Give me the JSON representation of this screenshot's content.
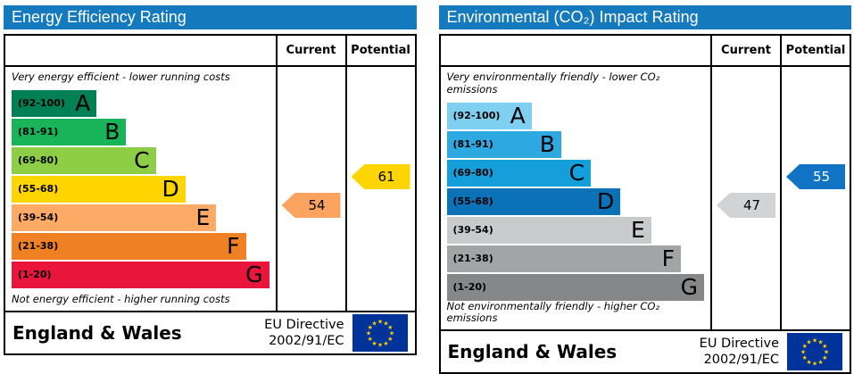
{
  "chart_data": [
    {
      "type": "bar",
      "title": "Energy Efficiency Rating",
      "header_color": "#1479bd",
      "column_headers": {
        "current": "Current",
        "potential": "Potential"
      },
      "top_caption": "Very energy efficient - lower running costs",
      "bottom_caption": "Not energy efficient - higher running costs",
      "bands": [
        {
          "letter": "A",
          "range": "(92-100)",
          "min": 92,
          "max": 100,
          "color": "#008054",
          "width": "33%"
        },
        {
          "letter": "B",
          "range": "(81-91)",
          "min": 81,
          "max": 91,
          "color": "#19b459",
          "width": "44.5%"
        },
        {
          "letter": "C",
          "range": "(69-80)",
          "min": 69,
          "max": 80,
          "color": "#8dce46",
          "width": "56%"
        },
        {
          "letter": "D",
          "range": "(55-68)",
          "min": 55,
          "max": 68,
          "color": "#ffd500",
          "width": "67.5%"
        },
        {
          "letter": "E",
          "range": "(39-54)",
          "min": 39,
          "max": 54,
          "color": "#fcaa65",
          "width": "79.5%"
        },
        {
          "letter": "F",
          "range": "(21-38)",
          "min": 21,
          "max": 38,
          "color": "#ef8023",
          "width": "91%"
        },
        {
          "letter": "G",
          "range": "(1-20)",
          "min": 1,
          "max": 20,
          "color": "#e9153b",
          "width": "100%"
        }
      ],
      "current": {
        "value": 54,
        "band": "E",
        "row": 4,
        "color": "#fba35f",
        "text_color": "#000000"
      },
      "potential": {
        "value": 61,
        "band": "D",
        "row": 3,
        "color": "#ffd500",
        "text_color": "#000000"
      },
      "footer": {
        "region": "England & Wales",
        "directive_line1": "EU Directive",
        "directive_line2": "2002/91/EC",
        "flag_bg": "#003399",
        "star_color": "#ffcc00"
      }
    },
    {
      "type": "bar",
      "title": "Environmental (CO₂) Impact Rating",
      "header_color": "#1479bd",
      "column_headers": {
        "current": "Current",
        "potential": "Potential"
      },
      "top_caption": "Very environmentally friendly - lower CO₂ emissions",
      "bottom_caption": "Not environmentally friendly - higher CO₂ emissions",
      "bands": [
        {
          "letter": "A",
          "range": "(92-100)",
          "min": 92,
          "max": 100,
          "color": "#7ecff0",
          "width": "33%"
        },
        {
          "letter": "B",
          "range": "(81-91)",
          "min": 81,
          "max": 91,
          "color": "#2ea8e0",
          "width": "44.5%"
        },
        {
          "letter": "C",
          "range": "(69-80)",
          "min": 69,
          "max": 80,
          "color": "#149fda",
          "width": "56%"
        },
        {
          "letter": "D",
          "range": "(55-68)",
          "min": 55,
          "max": 68,
          "color": "#0b72b8",
          "width": "67.5%"
        },
        {
          "letter": "E",
          "range": "(39-54)",
          "min": 39,
          "max": 54,
          "color": "#c9cacb",
          "width": "79.5%"
        },
        {
          "letter": "F",
          "range": "(21-38)",
          "min": 21,
          "max": 38,
          "color": "#a3a4a6",
          "width": "91%"
        },
        {
          "letter": "G",
          "range": "(1-20)",
          "min": 1,
          "max": 20,
          "color": "#868789",
          "width": "100%"
        }
      ],
      "current": {
        "value": 47,
        "band": "E",
        "row": 4,
        "color": "#d2d3d5",
        "text_color": "#000000"
      },
      "potential": {
        "value": 55,
        "band": "D",
        "row": 3,
        "color": "#1173c4",
        "text_color": "#ffffff"
      },
      "footer": {
        "region": "England & Wales",
        "directive_line1": "EU Directive",
        "directive_line2": "2002/91/EC",
        "flag_bg": "#003399",
        "star_color": "#ffcc00"
      }
    }
  ]
}
